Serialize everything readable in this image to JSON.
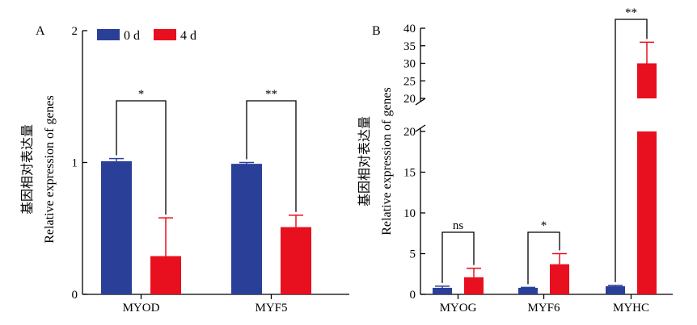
{
  "colors": {
    "day0": "#2a3f98",
    "day4": "#e8101e",
    "axis": "#000000"
  },
  "legend": [
    {
      "name": "0 d",
      "color": "#2a3f98"
    },
    {
      "name": "4 d",
      "color": "#e8101e"
    }
  ],
  "chart_data": [
    {
      "type": "bar",
      "panel": "A",
      "ylabel_cn": "基因相对表达量",
      "ylabel": "Relative expression of genes",
      "ylim": [
        0,
        2
      ],
      "yticks": [
        "0",
        "1",
        "2"
      ],
      "categories": [
        "MYOD",
        "MYF5"
      ],
      "series": [
        {
          "name": "0 d",
          "values": [
            1.01,
            0.99
          ],
          "errors": [
            0.02,
            0.01
          ]
        },
        {
          "name": "4 d",
          "values": [
            0.29,
            0.51
          ],
          "errors": [
            0.29,
            0.09
          ]
        }
      ],
      "significance": [
        "*",
        "**"
      ]
    },
    {
      "type": "bar",
      "panel": "B",
      "ylabel_cn": "基因相对表达量",
      "ylabel": "Relative expression of genes",
      "ylim": [
        0,
        40
      ],
      "axis_break": [
        20,
        20
      ],
      "yticks_lower": [
        "0",
        "5",
        "10",
        "15",
        "20"
      ],
      "yticks_upper": [
        "20",
        "25",
        "30",
        "35",
        "40"
      ],
      "categories": [
        "MYOG",
        "MYF6",
        "MYHC"
      ],
      "series": [
        {
          "name": "0 d",
          "values": [
            0.8,
            0.8,
            1.0
          ],
          "errors": [
            0.2,
            0.05,
            0.1
          ]
        },
        {
          "name": "4 d",
          "values": [
            2.1,
            3.7,
            30
          ],
          "errors": [
            1.1,
            1.3,
            6
          ]
        }
      ],
      "significance": [
        "ns",
        "*",
        "**"
      ]
    }
  ]
}
